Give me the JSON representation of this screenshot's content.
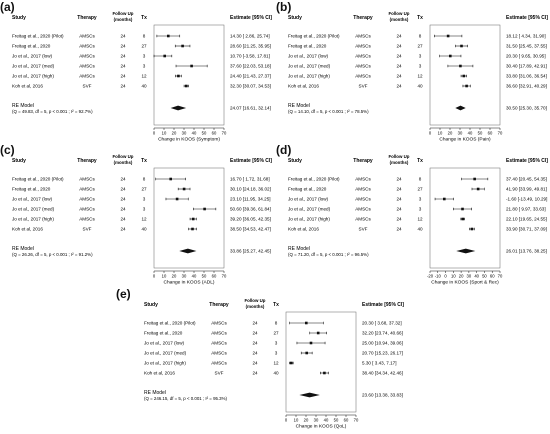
{
  "figure": {
    "headers": {
      "study": "Study",
      "therapy": "Therapy",
      "followup_line1": "Follow Up",
      "followup_line2": "(months)",
      "tx": "Tx",
      "estimate": "Estimate [95% CI]"
    },
    "studies": [
      {
        "study": "Freitag et al., 2020 (Pilot)",
        "therapy": "AMSCs",
        "followup": "24",
        "tx": "8"
      },
      {
        "study": "Freitag et al., 2020",
        "therapy": "AMSCs",
        "followup": "24",
        "tx": "27"
      },
      {
        "study": "Jo et al., 2017 (low)",
        "therapy": "AMSCs",
        "followup": "24",
        "tx": "3"
      },
      {
        "study": "Jo et al., 2017 (med)",
        "therapy": "AMSCs",
        "followup": "24",
        "tx": "3"
      },
      {
        "study": "Jo et al., 2017 (high)",
        "therapy": "AMSCs",
        "followup": "24",
        "tx": "12"
      },
      {
        "study": "Koh et al, 2016",
        "therapy": "SVF",
        "followup": "24",
        "tx": "40"
      }
    ],
    "re_model_label": "RE Model"
  },
  "chart_data": [
    {
      "type": "forest",
      "panel": "(a)",
      "xlabel": "Change in KOOS (Symptom)",
      "xticks": [
        0,
        10,
        20,
        30,
        40,
        50,
        60,
        70
      ],
      "xlim": [
        0,
        70
      ],
      "estimates": [
        {
          "est": 14.3,
          "lo": 2.86,
          "hi": 25.74,
          "text": "14.30 [ 2.86, 25.74]"
        },
        {
          "est": 28.6,
          "lo": 21.25,
          "hi": 35.95,
          "text": "28.60 [21.25, 35.95]"
        },
        {
          "est": 10.7,
          "lo": -3.58,
          "hi": 17.81,
          "text": "10.70 [-3.58, 17.81]"
        },
        {
          "est": 37.6,
          "lo": 22.03,
          "hi": 53.18,
          "text": "37.60 [22.03, 53.18]"
        },
        {
          "est": 24.4,
          "lo": 21.43,
          "hi": 27.37,
          "text": "24.40 [21.43, 27.37]"
        },
        {
          "est": 32.3,
          "lo": 30.07,
          "hi": 34.53,
          "text": "32.30 [30.07, 34.53]"
        }
      ],
      "summary": {
        "est": 24.07,
        "lo": 16.61,
        "hi": 32.14,
        "text": "24.07 [16.61, 32.14]"
      },
      "stats": "(Q = 49.83, df = 5, p < 0.001 ; I² = 92.7%)"
    },
    {
      "type": "forest",
      "panel": "(b)",
      "xlabel": "Change in KOOS (Pain)",
      "xticks": [
        0,
        10,
        20,
        30,
        40,
        50,
        60,
        70
      ],
      "xlim": [
        0,
        70
      ],
      "estimates": [
        {
          "est": 18.12,
          "lo": 4.34,
          "hi": 31.9,
          "text": "18.12 [ 4.34, 31.90]"
        },
        {
          "est": 31.5,
          "lo": 25.45,
          "hi": 37.55,
          "text": "31.50 [25.45, 37.55]"
        },
        {
          "est": 20.3,
          "lo": 9.65,
          "hi": 30.95,
          "text": "20.30 [ 9.65, 30.95]"
        },
        {
          "est": 30.4,
          "lo": 17.89,
          "hi": 42.91,
          "text": "30.40 [17.89, 42.91]"
        },
        {
          "est": 33.8,
          "lo": 31.06,
          "hi": 36.54,
          "text": "33.80 [31.06, 36.54]"
        },
        {
          "est": 36.6,
          "lo": 32.91,
          "hi": 40.29,
          "text": "36.60 [32.91, 40.29]"
        }
      ],
      "summary": {
        "est": 30.5,
        "lo": 25.3,
        "hi": 35.7,
        "text": "30.50 [25.30, 35.70]"
      },
      "stats": "(Q = 14.10, df = 5, p < 0.001 ; I² = 78.5%)"
    },
    {
      "type": "forest",
      "panel": "(c)",
      "xlabel": "Change in KOOS (ADL)",
      "xticks": [
        0,
        10,
        20,
        30,
        40,
        50,
        60,
        70
      ],
      "xlim": [
        0,
        70
      ],
      "estimates": [
        {
          "est": 16.7,
          "lo": 1.72,
          "hi": 31.68,
          "text": "16.70 [ 1.72, 31.68]"
        },
        {
          "est": 30.1,
          "lo": 24.18,
          "hi": 36.02,
          "text": "30.10 [24.18, 36.02]"
        },
        {
          "est": 23.1,
          "lo": 11.95,
          "hi": 34.25,
          "text": "23.10 [11.95, 34.25]"
        },
        {
          "est": 50.6,
          "lo": 39.36,
          "hi": 61.84,
          "text": "50.60 [39.36, 61.84]"
        },
        {
          "est": 39.2,
          "lo": 36.05,
          "hi": 42.35,
          "text": "39.20 [36.05, 42.35]"
        },
        {
          "est": 38.5,
          "lo": 34.53,
          "hi": 42.47,
          "text": "38.50 [34.53, 42.47]"
        }
      ],
      "summary": {
        "est": 33.86,
        "lo": 25.27,
        "hi": 42.45,
        "text": "33.86 [25.27, 42.45]"
      },
      "stats": "(Q = 26.26, df = 5, p < 0.001 ; I² = 91.2%)"
    },
    {
      "type": "forest",
      "panel": "(d)",
      "xlabel": "Change in KOOS (Sport & Rec)",
      "xticks": [
        -20,
        -10,
        0,
        10,
        20,
        30,
        40,
        50,
        60,
        70
      ],
      "xlim": [
        -20,
        70
      ],
      "estimates": [
        {
          "est": 37.4,
          "lo": 20.45,
          "hi": 54.35,
          "text": "37.40 [20.45, 54.35]"
        },
        {
          "est": 41.9,
          "lo": 33.99,
          "hi": 49.81,
          "text": "41.90 [33.99, 49.81]"
        },
        {
          "est": -1.6,
          "lo": -13.49,
          "hi": 10.29,
          "text": "-1.60 [-13.49, 10.29]"
        },
        {
          "est": 21.8,
          "lo": 9.97,
          "hi": 33.63,
          "text": "21.80 [ 9.97, 33.63]"
        },
        {
          "est": 22.1,
          "lo": 19.65,
          "hi": 24.55,
          "text": "22.10 [19.65, 24.55]"
        },
        {
          "est": 33.9,
          "lo": 30.71,
          "hi": 37.09,
          "text": "33.90 [30.71, 37.09]"
        }
      ],
      "summary": {
        "est": 26.01,
        "lo": 13.76,
        "hi": 38.25,
        "text": "26.01 [13.76, 38.25]"
      },
      "stats": "(Q = 71.20, df = 5, p < 0.001 ; I² = 96.5%)"
    },
    {
      "type": "forest",
      "panel": "(e)",
      "xlabel": "Change in KOOS (QoL)",
      "xticks": [
        0,
        10,
        20,
        30,
        40,
        50,
        60,
        70
      ],
      "xlim": [
        0,
        70
      ],
      "estimates": [
        {
          "est": 20.3,
          "lo": 3.68,
          "hi": 37.32,
          "text": "20.30 [ 3.68, 37.32]"
        },
        {
          "est": 32.2,
          "lo": 23.74,
          "hi": 40.66,
          "text": "32.20 [23.74, 40.66]"
        },
        {
          "est": 25.0,
          "lo": 10.94,
          "hi": 39.06,
          "text": "25.00 [10.94, 39.06]"
        },
        {
          "est": 20.7,
          "lo": 15.23,
          "hi": 26.17,
          "text": "20.70 [15.23, 26.17]"
        },
        {
          "est": 5.3,
          "lo": 3.43,
          "hi": 7.17,
          "text": "5.30 [ 3.43, 7.17]"
        },
        {
          "est": 38.4,
          "lo": 34.34,
          "hi": 42.46,
          "text": "38.40 [34.34, 42.46]"
        }
      ],
      "summary": {
        "est": 23.6,
        "lo": 13.38,
        "hi": 33.83,
        "text": "23.60 [13.38, 33.83]"
      },
      "stats": "(Q = 246.15, df = 5, p < 0.001 ; I² = 95.3%)"
    }
  ]
}
